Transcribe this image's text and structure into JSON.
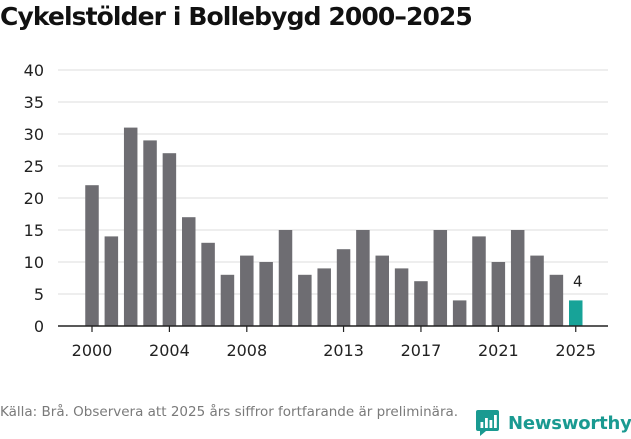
{
  "title": "Cykelstölder i Bollebygd 2000–2025",
  "chart_data": {
    "type": "bar",
    "title": "Cykelstölder i Bollebygd 2000–2025",
    "xlabel": "",
    "ylabel": "",
    "categories": [
      2000,
      2001,
      2002,
      2003,
      2004,
      2005,
      2006,
      2007,
      2008,
      2009,
      2010,
      2011,
      2012,
      2013,
      2014,
      2015,
      2016,
      2017,
      2018,
      2019,
      2020,
      2021,
      2022,
      2023,
      2024,
      2025
    ],
    "values": [
      22,
      14,
      31,
      29,
      27,
      17,
      13,
      8,
      11,
      10,
      15,
      8,
      9,
      12,
      15,
      11,
      9,
      7,
      15,
      4,
      14,
      10,
      15,
      11,
      8,
      4
    ],
    "highlight_category": 2025,
    "data_labels": [
      {
        "category": 2025,
        "text": "4"
      }
    ],
    "x_tick_labels": [
      "2000",
      "2004",
      "2008",
      "2013",
      "2017",
      "2021",
      "2025"
    ],
    "y_ticks": [
      0,
      5,
      10,
      15,
      20,
      25,
      30,
      35,
      40
    ],
    "ylim": [
      0,
      40
    ],
    "grid": true,
    "bar_color": "#6e6d72",
    "highlight_color": "#17a398",
    "grid_color": "#dcdcdc",
    "axis_color": "#222222"
  },
  "footer": {
    "note": "Källa: Brå. Observera att 2025 års siffror fortfarande är preliminära.",
    "brand": "Newsworthy",
    "brand_color": "#1a9a91",
    "brand_icon": "newsworthy-logo-icon"
  }
}
